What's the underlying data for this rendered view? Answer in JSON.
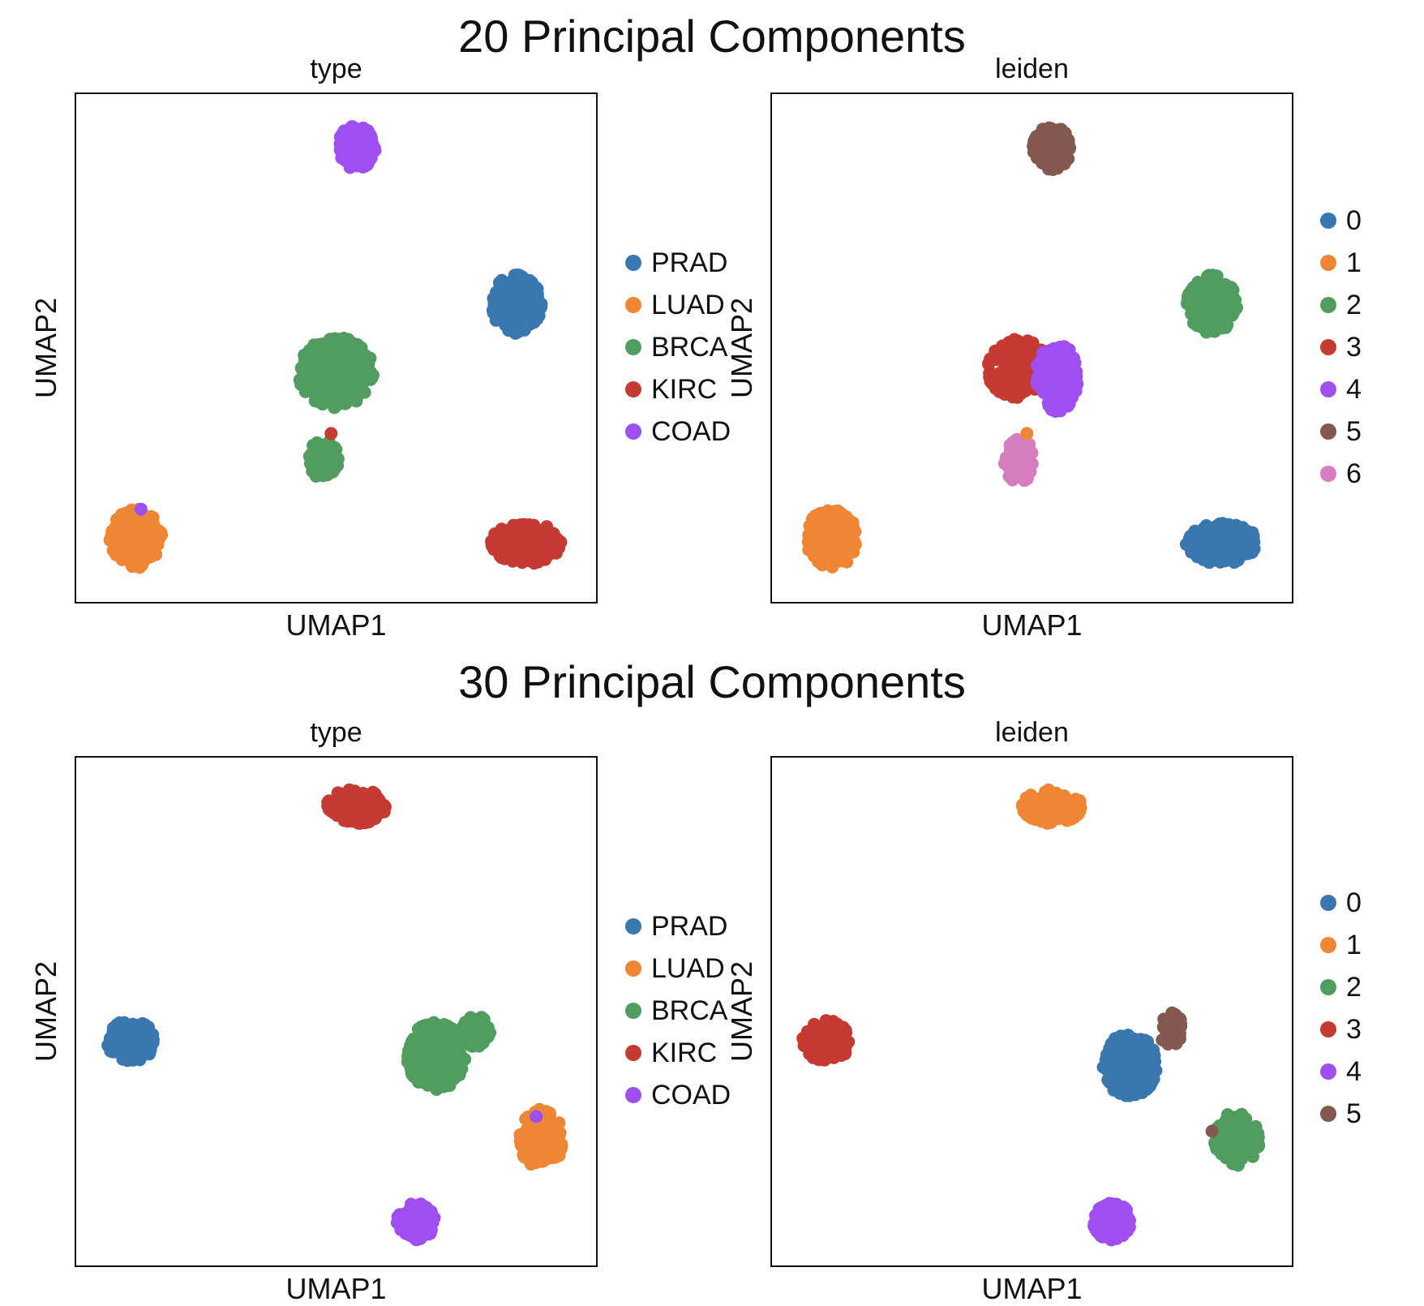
{
  "colors": {
    "c0": "#3A76AF",
    "c1": "#EF8636",
    "c2": "#519D60",
    "c3": "#C53A32",
    "c4": "#9F4EF0",
    "c5": "#84584E",
    "c6": "#D57DBF"
  },
  "figures": [
    {
      "title": "20 Principal Components"
    },
    {
      "title": "30 Principal Components"
    }
  ],
  "chart_data": [
    {
      "type": "scatter",
      "group": "20 Principal Components",
      "title": "type",
      "xlabel": "UMAP1",
      "ylabel": "UMAP2",
      "xlim": [
        0,
        10
      ],
      "ylim": [
        0,
        10
      ],
      "grid": false,
      "legend_position": "right",
      "legend": [
        {
          "label": "PRAD",
          "color": "#3A76AF"
        },
        {
          "label": "LUAD",
          "color": "#EF8636"
        },
        {
          "label": "BRCA",
          "color": "#519D60"
        },
        {
          "label": "KIRC",
          "color": "#C53A32"
        },
        {
          "label": "COAD",
          "color": "#9F4EF0"
        }
      ],
      "clusters": [
        {
          "label": "COAD",
          "color": "#9F4EF0",
          "center": [
            5.4,
            9.1
          ],
          "spread": [
            0.38,
            0.45
          ],
          "n": 130
        },
        {
          "label": "PRAD",
          "color": "#3A76AF",
          "center": [
            8.6,
            5.9
          ],
          "spread": [
            0.5,
            0.6
          ],
          "n": 160
        },
        {
          "label": "BRCA",
          "color": "#519D60",
          "center": [
            5.0,
            4.5
          ],
          "spread": [
            0.75,
            0.72
          ],
          "n": 300
        },
        {
          "label": "BRCA",
          "color": "#519D60",
          "center": [
            4.75,
            2.7
          ],
          "spread": [
            0.3,
            0.45
          ],
          "n": 55
        },
        {
          "label": "LUAD",
          "color": "#EF8636",
          "center": [
            1.0,
            1.1
          ],
          "spread": [
            0.52,
            0.6
          ],
          "n": 160
        },
        {
          "label": "KIRC",
          "color": "#C53A32",
          "center": [
            8.8,
            1.0
          ],
          "spread": [
            0.72,
            0.42
          ],
          "n": 170
        }
      ],
      "points": [
        {
          "label": "KIRC",
          "color": "#C53A32",
          "x": 4.9,
          "y": 3.25
        },
        {
          "label": "COAD",
          "color": "#9F4EF0",
          "x": 1.1,
          "y": 1.7
        }
      ]
    },
    {
      "type": "scatter",
      "group": "20 Principal Components",
      "title": "leiden",
      "xlabel": "UMAP1",
      "ylabel": "UMAP2",
      "xlim": [
        0,
        10
      ],
      "ylim": [
        0,
        10
      ],
      "grid": false,
      "legend_position": "right",
      "legend": [
        {
          "label": "0",
          "color": "#3A76AF"
        },
        {
          "label": "1",
          "color": "#EF8636"
        },
        {
          "label": "2",
          "color": "#519D60"
        },
        {
          "label": "3",
          "color": "#C53A32"
        },
        {
          "label": "4",
          "color": "#9F4EF0"
        },
        {
          "label": "5",
          "color": "#84584E"
        },
        {
          "label": "6",
          "color": "#D57DBF"
        }
      ],
      "clusters": [
        {
          "label": "5",
          "color": "#84584E",
          "center": [
            5.4,
            9.1
          ],
          "spread": [
            0.38,
            0.45
          ],
          "n": 130
        },
        {
          "label": "2",
          "color": "#519D60",
          "center": [
            8.6,
            5.9
          ],
          "spread": [
            0.5,
            0.6
          ],
          "n": 160
        },
        {
          "label": "3",
          "color": "#C53A32",
          "center": [
            4.7,
            4.6
          ],
          "spread": [
            0.6,
            0.62
          ],
          "n": 170
        },
        {
          "label": "4",
          "color": "#9F4EF0",
          "center": [
            5.5,
            4.4
          ],
          "spread": [
            0.42,
            0.7
          ],
          "n": 150
        },
        {
          "label": "6",
          "color": "#D57DBF",
          "center": [
            4.75,
            2.7
          ],
          "spread": [
            0.3,
            0.45
          ],
          "n": 55
        },
        {
          "label": "1",
          "color": "#EF8636",
          "center": [
            1.0,
            1.1
          ],
          "spread": [
            0.52,
            0.6
          ],
          "n": 160
        },
        {
          "label": "0",
          "color": "#3A76AF",
          "center": [
            8.8,
            1.0
          ],
          "spread": [
            0.72,
            0.42
          ],
          "n": 170
        }
      ],
      "points": [
        {
          "label": "1",
          "color": "#EF8636",
          "x": 4.9,
          "y": 3.25
        }
      ]
    },
    {
      "type": "scatter",
      "group": "30 Principal Components",
      "title": "type",
      "xlabel": "UMAP1",
      "ylabel": "UMAP2",
      "xlim": [
        0,
        10
      ],
      "ylim": [
        0,
        10
      ],
      "grid": false,
      "legend_position": "right",
      "legend": [
        {
          "label": "PRAD",
          "color": "#3A76AF"
        },
        {
          "label": "LUAD",
          "color": "#EF8636"
        },
        {
          "label": "BRCA",
          "color": "#519D60"
        },
        {
          "label": "KIRC",
          "color": "#C53A32"
        },
        {
          "label": "COAD",
          "color": "#9F4EF0"
        }
      ],
      "clusters": [
        {
          "label": "KIRC",
          "color": "#C53A32",
          "center": [
            5.4,
            9.2
          ],
          "spread": [
            0.6,
            0.35
          ],
          "n": 150
        },
        {
          "label": "PRAD",
          "color": "#3A76AF",
          "center": [
            0.9,
            4.4
          ],
          "spread": [
            0.48,
            0.42
          ],
          "n": 140
        },
        {
          "label": "BRCA",
          "color": "#519D60",
          "center": [
            7.0,
            4.1
          ],
          "spread": [
            0.58,
            0.7
          ],
          "n": 220
        },
        {
          "label": "BRCA",
          "color": "#519D60",
          "center": [
            7.8,
            4.6
          ],
          "spread": [
            0.28,
            0.35
          ],
          "n": 60
        },
        {
          "label": "LUAD",
          "color": "#EF8636",
          "center": [
            9.1,
            2.4
          ],
          "spread": [
            0.45,
            0.6
          ],
          "n": 140
        },
        {
          "label": "COAD",
          "color": "#9F4EF0",
          "center": [
            6.6,
            0.7
          ],
          "spread": [
            0.38,
            0.38
          ],
          "n": 110
        }
      ],
      "points": [
        {
          "label": "COAD",
          "color": "#9F4EF0",
          "x": 9.0,
          "y": 2.85
        }
      ]
    },
    {
      "type": "scatter",
      "group": "30 Principal Components",
      "title": "leiden",
      "xlabel": "UMAP1",
      "ylabel": "UMAP2",
      "xlim": [
        0,
        10
      ],
      "ylim": [
        0,
        10
      ],
      "grid": false,
      "legend_position": "right",
      "legend": [
        {
          "label": "0",
          "color": "#3A76AF"
        },
        {
          "label": "1",
          "color": "#EF8636"
        },
        {
          "label": "2",
          "color": "#519D60"
        },
        {
          "label": "3",
          "color": "#C53A32"
        },
        {
          "label": "4",
          "color": "#9F4EF0"
        },
        {
          "label": "5",
          "color": "#84584E"
        }
      ],
      "clusters": [
        {
          "label": "1",
          "color": "#EF8636",
          "center": [
            5.4,
            9.2
          ],
          "spread": [
            0.6,
            0.35
          ],
          "n": 150
        },
        {
          "label": "3",
          "color": "#C53A32",
          "center": [
            0.9,
            4.4
          ],
          "spread": [
            0.48,
            0.42
          ],
          "n": 140
        },
        {
          "label": "0",
          "color": "#3A76AF",
          "center": [
            6.95,
            3.9
          ],
          "spread": [
            0.55,
            0.65
          ],
          "n": 230
        },
        {
          "label": "5",
          "color": "#84584E",
          "center": [
            7.8,
            4.6
          ],
          "spread": [
            0.22,
            0.38
          ],
          "n": 40
        },
        {
          "label": "2",
          "color": "#519D60",
          "center": [
            9.1,
            2.4
          ],
          "spread": [
            0.45,
            0.55
          ],
          "n": 140
        },
        {
          "label": "4",
          "color": "#9F4EF0",
          "center": [
            6.6,
            0.7
          ],
          "spread": [
            0.38,
            0.38
          ],
          "n": 110
        }
      ],
      "points": [
        {
          "label": "5",
          "color": "#84584E",
          "x": 8.6,
          "y": 2.55
        }
      ]
    }
  ]
}
